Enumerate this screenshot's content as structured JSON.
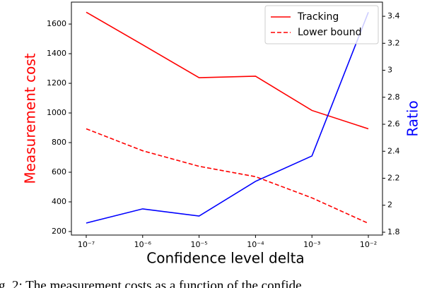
{
  "chart_data": {
    "type": "line",
    "xlabel": "Confidence level delta",
    "ylabel": "Measurement cost",
    "ylabel_color": "#ff0000",
    "y2label": "Ratio",
    "y2label_color": "#0000ff",
    "x": [
      1e-07,
      1e-06,
      1e-05,
      0.0001,
      0.001,
      0.01
    ],
    "xscale": "log",
    "xlim": [
      5.46e-08,
      0.0178
    ],
    "xticks": [
      {
        "value": 1e-07,
        "label": "10⁻⁷"
      },
      {
        "value": 1e-06,
        "label": "10⁻⁶"
      },
      {
        "value": 1e-05,
        "label": "10⁻⁵"
      },
      {
        "value": 0.0001,
        "label": "10⁻⁴"
      },
      {
        "value": 0.001,
        "label": "10⁻³"
      },
      {
        "value": 0.01,
        "label": "10⁻²"
      }
    ],
    "ylim": [
      176,
      1748
    ],
    "yticks": [
      200,
      400,
      600,
      800,
      1000,
      1200,
      1400,
      1600
    ],
    "y2lim": [
      1.779,
      3.505
    ],
    "y2ticks": [
      1.8,
      2.0,
      2.2,
      2.4,
      2.6,
      2.8,
      3.0,
      3.2,
      3.4
    ],
    "legend": "upper right",
    "series": [
      {
        "name": "Tracking",
        "color": "#ff0000",
        "linestyle": "solid",
        "values": [
          1680,
          1460,
          1238,
          1248,
          1017,
          893
        ]
      },
      {
        "name": "Lower bound",
        "color": "#ff0000",
        "linestyle": "dashed",
        "values": [
          893,
          745,
          640,
          570,
          427,
          255
        ]
      },
      {
        "color": "#0000ff",
        "linestyle": "solid",
        "axis": "y2",
        "values": [
          1.868,
          1.973,
          1.92,
          2.177,
          2.365,
          3.43
        ]
      }
    ],
    "caption": "g. 2: The measurement costs as a function of the confide"
  }
}
